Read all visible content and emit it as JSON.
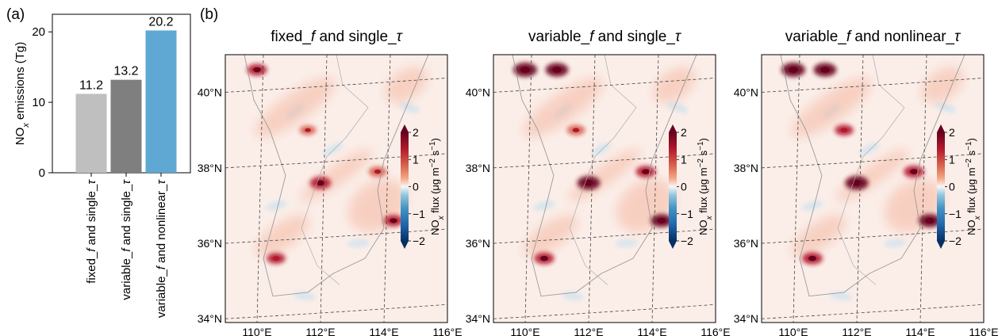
{
  "panel_a": {
    "label": "(a)"
  },
  "panel_b": {
    "label": "(b)"
  },
  "colorbar": {
    "ticks": [
      "2",
      "1",
      "0",
      "−1",
      "−2"
    ]
  },
  "chart_data": [
    {
      "type": "bar",
      "ylabel": "NO_x emissions (Tg)",
      "ylim": [
        0,
        22.5
      ],
      "yticks": [
        "0",
        "10",
        "20"
      ],
      "categories": [
        "fixed_f and single_τ",
        "variable_f and single_τ",
        "variable_f and nonlinear_τ"
      ],
      "values": [
        11.2,
        13.2,
        20.2
      ],
      "value_labels": [
        "11.2",
        "13.2",
        "20.2"
      ],
      "colors": [
        "#bfbfbf",
        "#7f7f7f",
        "#5fa8d3"
      ]
    },
    {
      "type": "heatmap",
      "title": "fixed_f and single_τ",
      "lon_ticks": [
        "110°E",
        "112°E",
        "114°E",
        "116°E"
      ],
      "lat_ticks": [
        "40°N",
        "38°N",
        "36°N",
        "34°N"
      ],
      "colorbar_label": "NO_x flux (μg m^-2 s^-1)",
      "colorbar_range": [
        -2,
        2
      ],
      "colormap": "RdBu_r",
      "hotspots": [
        {
          "lon": 110.0,
          "lat": 40.6,
          "value": 1.2
        },
        {
          "lon": 112.0,
          "lat": 37.6,
          "value": 1.4
        },
        {
          "lon": 114.3,
          "lat": 36.6,
          "value": 1.1
        },
        {
          "lon": 113.8,
          "lat": 37.9,
          "value": 0.8
        },
        {
          "lon": 110.6,
          "lat": 35.6,
          "value": 0.9
        },
        {
          "lon": 111.6,
          "lat": 39.0,
          "value": 0.5
        }
      ]
    },
    {
      "type": "heatmap",
      "title": "variable_f and single_τ",
      "lon_ticks": [
        "110°E",
        "112°E",
        "114°E",
        "116°E"
      ],
      "lat_ticks": [
        "40°N",
        "38°N",
        "36°N",
        "34°N"
      ],
      "colorbar_label": "NO_x flux (μg m^-2 s^-1)",
      "colorbar_range": [
        -2,
        2
      ],
      "colormap": "RdBu_r",
      "hotspots": [
        {
          "lon": 110.0,
          "lat": 40.6,
          "value": 2.0
        },
        {
          "lon": 111.0,
          "lat": 40.6,
          "value": 1.8
        },
        {
          "lon": 112.0,
          "lat": 37.6,
          "value": 1.8
        },
        {
          "lon": 114.3,
          "lat": 36.6,
          "value": 1.6
        },
        {
          "lon": 113.8,
          "lat": 37.9,
          "value": 1.2
        },
        {
          "lon": 110.6,
          "lat": 35.6,
          "value": 1.2
        },
        {
          "lon": 111.6,
          "lat": 39.0,
          "value": 0.8
        }
      ]
    },
    {
      "type": "heatmap",
      "title": "variable_f and nonlinear_τ",
      "lon_ticks": [
        "110°E",
        "112°E",
        "114°E",
        "116°E"
      ],
      "lat_ticks": [
        "40°N",
        "38°N",
        "36°N",
        "34°N"
      ],
      "colorbar_label": "NO_x flux (μg m^-2 s^-1)",
      "colorbar_range": [
        -2,
        2
      ],
      "colormap": "RdBu_r",
      "hotspots": [
        {
          "lon": 110.0,
          "lat": 40.6,
          "value": 2.0
        },
        {
          "lon": 111.0,
          "lat": 40.6,
          "value": 1.8
        },
        {
          "lon": 112.0,
          "lat": 37.6,
          "value": 1.9
        },
        {
          "lon": 114.3,
          "lat": 36.6,
          "value": 1.7
        },
        {
          "lon": 113.8,
          "lat": 37.9,
          "value": 1.3
        },
        {
          "lon": 110.6,
          "lat": 35.6,
          "value": 1.3
        },
        {
          "lon": 111.6,
          "lat": 39.0,
          "value": 0.9
        }
      ]
    }
  ]
}
